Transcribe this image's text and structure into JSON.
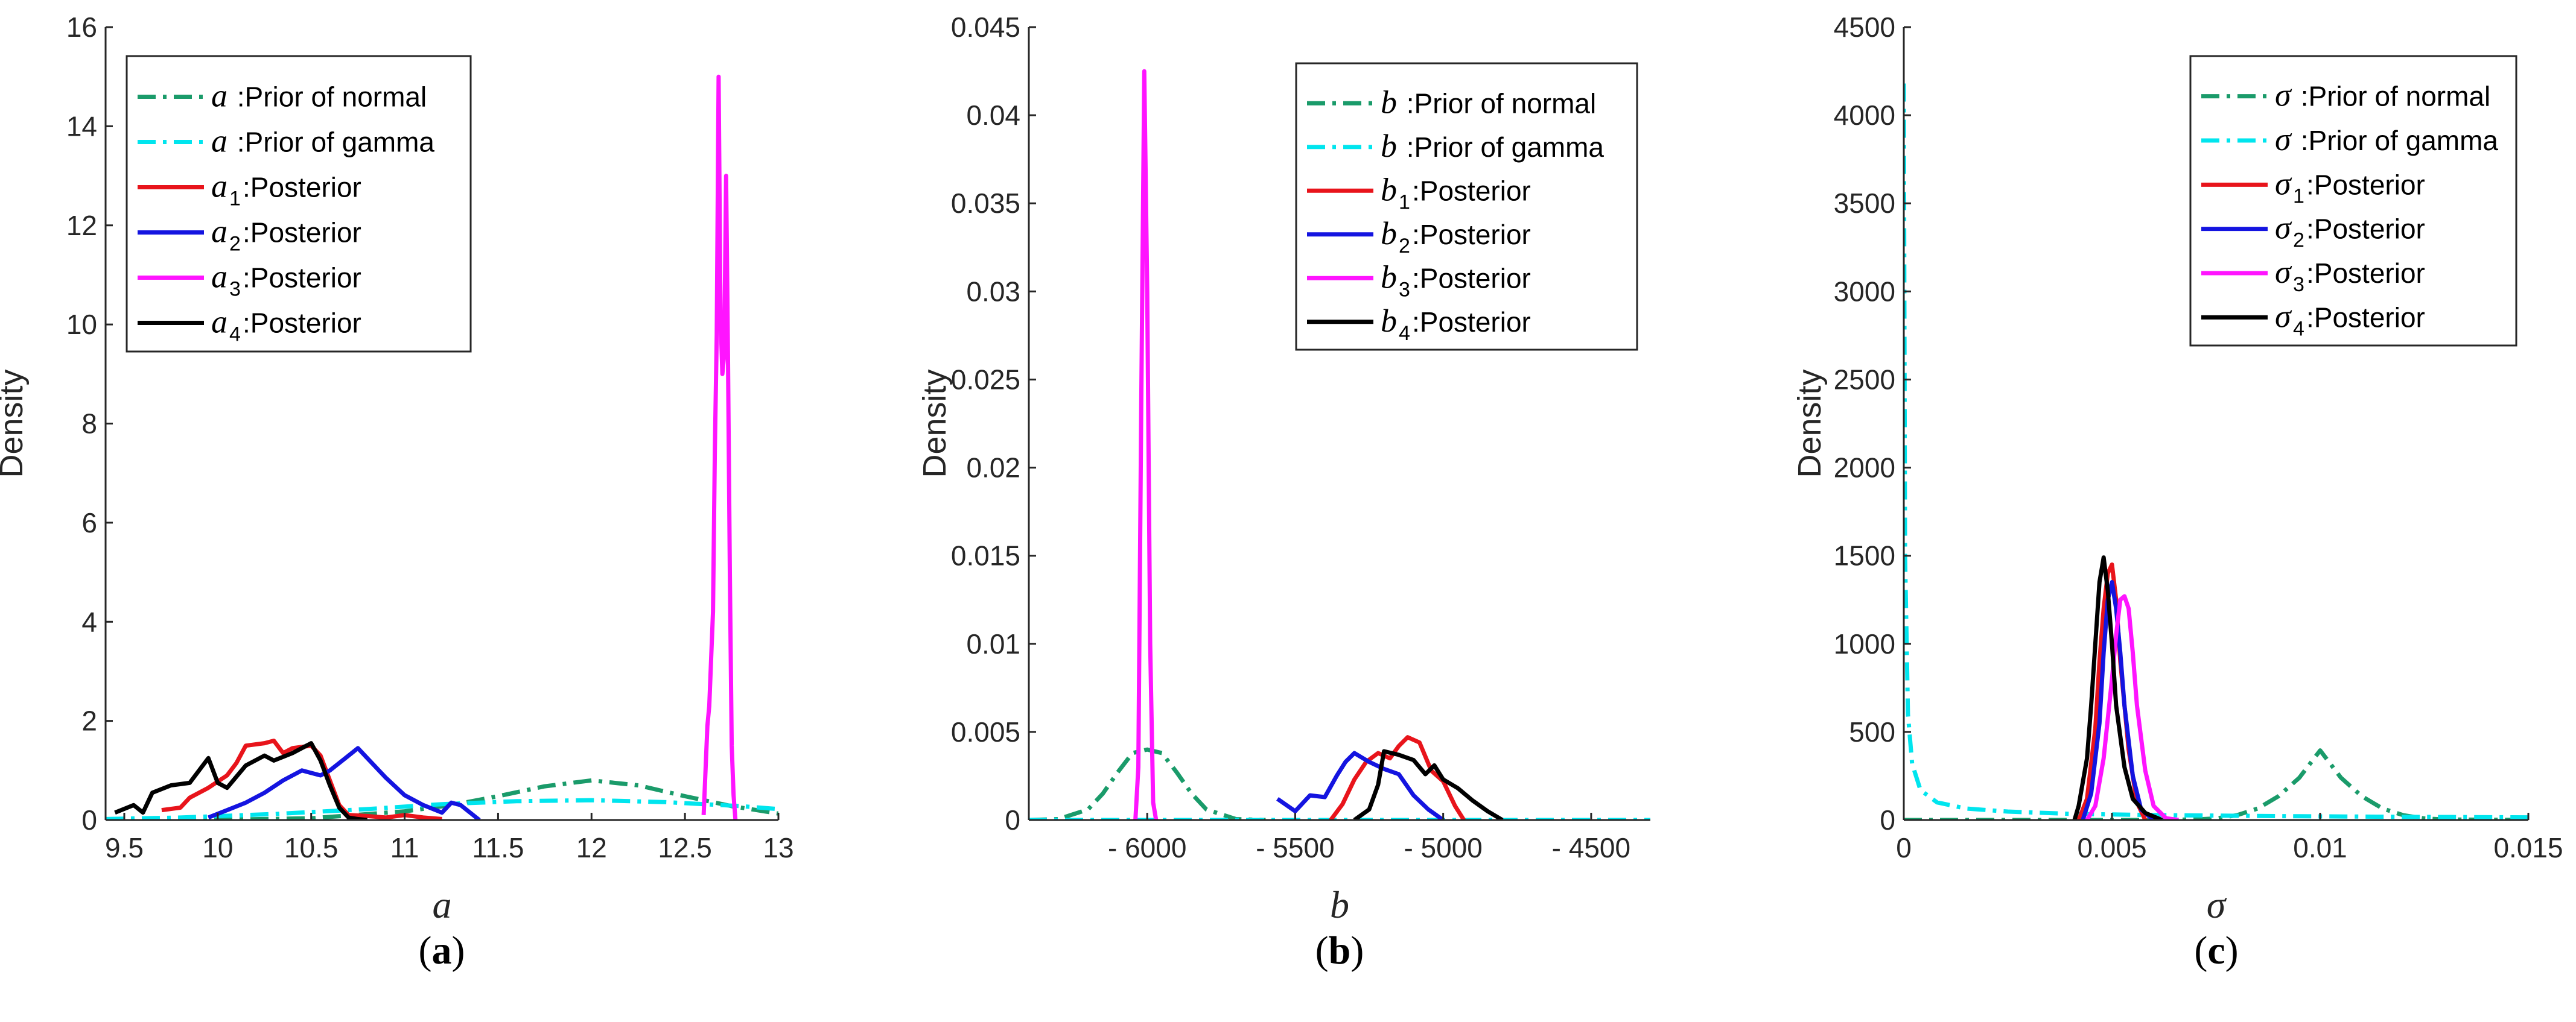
{
  "chart_data": [
    {
      "panel": "a",
      "type": "line",
      "caption": "(a)",
      "caption_letter": "a",
      "xlabel": "a",
      "ylabel": "Density",
      "xlim": [
        9.4,
        13
      ],
      "ylim": [
        0,
        16
      ],
      "xticks": [
        9.5,
        10,
        10.5,
        11,
        11.5,
        12,
        12.5,
        13
      ],
      "xtick_labels": [
        "9.5",
        "10",
        "10.5",
        "11",
        "11.5",
        "12",
        "12.5",
        "13"
      ],
      "yticks": [
        0,
        2,
        4,
        6,
        8,
        10,
        12,
        14,
        16
      ],
      "ytick_labels": [
        "0",
        "2",
        "4",
        "6",
        "8",
        "10",
        "12",
        "14",
        "16"
      ],
      "legend_position": "top-left",
      "series": [
        {
          "name": "a :Prior of normal",
          "symbol": "a",
          "sub": "",
          "label": " :Prior of normal",
          "color": "#1a9b6a",
          "style": "dashdot",
          "x": [
            9.4,
            10.0,
            10.5,
            11.0,
            11.25,
            11.5,
            11.75,
            12.0,
            12.25,
            12.5,
            12.75,
            13.0
          ],
          "y": [
            0.0,
            0.004,
            0.035,
            0.175,
            0.3,
            0.48,
            0.68,
            0.8,
            0.7,
            0.48,
            0.28,
            0.13
          ]
        },
        {
          "name": "a :Prior of gamma",
          "symbol": "a",
          "sub": "",
          "label": " :Prior of gamma",
          "color": "#00e5ee",
          "style": "dashdot",
          "x": [
            9.4,
            9.8,
            10.3,
            10.8,
            11.2,
            11.6,
            12.0,
            12.4,
            12.8,
            13.0
          ],
          "y": [
            0.02,
            0.05,
            0.12,
            0.22,
            0.32,
            0.38,
            0.4,
            0.36,
            0.28,
            0.22
          ]
        },
        {
          "name": "a1:Posterior",
          "symbol": "a",
          "sub": "1",
          "label": ":Posterior",
          "color": "#e8141b",
          "style": "solid",
          "x": [
            9.7,
            9.8,
            9.85,
            9.95,
            10.05,
            10.1,
            10.15,
            10.25,
            10.3,
            10.35,
            10.4,
            10.5,
            10.55,
            10.6,
            10.65,
            10.7,
            10.8,
            10.9,
            11.0,
            11.1,
            11.2
          ],
          "y": [
            0.2,
            0.25,
            0.45,
            0.65,
            0.9,
            1.15,
            1.5,
            1.55,
            1.6,
            1.35,
            1.45,
            1.5,
            1.3,
            0.8,
            0.3,
            0.1,
            0.08,
            0.05,
            0.1,
            0.05,
            0.02
          ]
        },
        {
          "name": "a2:Posterior",
          "symbol": "a",
          "sub": "2",
          "label": ":Posterior",
          "color": "#1414e0",
          "style": "solid",
          "x": [
            9.95,
            10.05,
            10.15,
            10.25,
            10.35,
            10.45,
            10.55,
            10.6,
            10.7,
            10.75,
            10.8,
            10.9,
            11.0,
            11.1,
            11.2,
            11.25,
            11.3,
            11.35,
            11.4
          ],
          "y": [
            0.05,
            0.2,
            0.35,
            0.55,
            0.8,
            1.0,
            0.9,
            1.0,
            1.3,
            1.45,
            1.25,
            0.85,
            0.5,
            0.3,
            0.15,
            0.35,
            0.3,
            0.15,
            0.0
          ]
        },
        {
          "name": "a3:Posterior",
          "symbol": "a",
          "sub": "3",
          "label": ":Posterior",
          "color": "#ff14ff",
          "style": "solid",
          "x": [
            12.6,
            12.62,
            12.63,
            12.65,
            12.66,
            12.67,
            12.68,
            12.69,
            12.7,
            12.71,
            12.72,
            12.73,
            12.74,
            12.75,
            12.76,
            12.77
          ],
          "y": [
            0.1,
            1.9,
            2.3,
            4.2,
            7.5,
            9.8,
            15.0,
            10.2,
            9.0,
            9.4,
            13.0,
            9.4,
            5.0,
            1.5,
            0.5,
            0.0
          ]
        },
        {
          "name": "a4:Posterior",
          "symbol": "a",
          "sub": "4",
          "label": ":Posterior",
          "color": "#000000",
          "style": "solid",
          "x": [
            9.45,
            9.55,
            9.6,
            9.65,
            9.75,
            9.85,
            9.95,
            10.0,
            10.05,
            10.15,
            10.25,
            10.3,
            10.4,
            10.5,
            10.55,
            10.6,
            10.65,
            10.7,
            10.75,
            10.8
          ],
          "y": [
            0.15,
            0.3,
            0.15,
            0.55,
            0.7,
            0.75,
            1.25,
            0.75,
            0.65,
            1.1,
            1.3,
            1.2,
            1.35,
            1.55,
            1.2,
            0.7,
            0.25,
            0.05,
            0.02,
            0.0
          ]
        }
      ]
    },
    {
      "panel": "b",
      "type": "line",
      "caption": "(b)",
      "caption_letter": "b",
      "xlabel": "b",
      "ylabel": "Density",
      "xlim": [
        -6400,
        -4300
      ],
      "ylim": [
        0,
        0.045
      ],
      "xticks": [
        -6000,
        -5500,
        -5000,
        -4500
      ],
      "xtick_labels": [
        "- 6000",
        "- 5500",
        "- 5000",
        "- 4500"
      ],
      "yticks": [
        0,
        0.005,
        0.01,
        0.015,
        0.02,
        0.025,
        0.03,
        0.035,
        0.04,
        0.045
      ],
      "ytick_labels": [
        "0",
        "0.005",
        "0.01",
        "0.015",
        "0.02",
        "0.025",
        "0.03",
        "0.035",
        "0.04",
        "0.045"
      ],
      "legend_position": "top-right",
      "series": [
        {
          "name": "b :Prior of normal",
          "symbol": "b",
          "sub": "",
          "label": " :Prior of normal",
          "color": "#1a9b6a",
          "style": "dashdot",
          "x": [
            -6400,
            -6300,
            -6200,
            -6150,
            -6100,
            -6050,
            -6000,
            -5950,
            -5900,
            -5850,
            -5800,
            -5700,
            -5600
          ],
          "y": [
            0.0,
            5e-05,
            0.0006,
            0.0015,
            0.0027,
            0.0038,
            0.004,
            0.0038,
            0.0027,
            0.0015,
            0.0006,
            5e-05,
            0.0
          ]
        },
        {
          "name": "b :Prior of gamma",
          "symbol": "b",
          "sub": "",
          "label": " :Prior of gamma",
          "color": "#00e5ee",
          "style": "dashdot",
          "x": [
            -6400,
            -5500,
            -4300
          ],
          "y": [
            0.0,
            0.0,
            0.0
          ]
        },
        {
          "name": "b1:Posterior",
          "symbol": "b",
          "sub": "1",
          "label": ":Posterior",
          "color": "#e8141b",
          "style": "solid",
          "x": [
            -5380,
            -5340,
            -5300,
            -5260,
            -5220,
            -5180,
            -5150,
            -5120,
            -5080,
            -5040,
            -5000,
            -4960,
            -4930
          ],
          "y": [
            0.0,
            0.0009,
            0.0023,
            0.0033,
            0.0038,
            0.0035,
            0.0042,
            0.0047,
            0.0044,
            0.0028,
            0.0022,
            0.0008,
            0.0
          ]
        },
        {
          "name": "b2:Posterior",
          "symbol": "b",
          "sub": "2",
          "label": ":Posterior",
          "color": "#1414e0",
          "style": "solid",
          "x": [
            -5560,
            -5500,
            -5450,
            -5400,
            -5360,
            -5330,
            -5300,
            -5250,
            -5200,
            -5150,
            -5100,
            -5050,
            -5000
          ],
          "y": [
            0.0012,
            0.0005,
            0.0014,
            0.0013,
            0.0025,
            0.0033,
            0.0038,
            0.0033,
            0.0029,
            0.0026,
            0.0014,
            0.0006,
            0.0
          ]
        },
        {
          "name": "b3:Posterior",
          "symbol": "b",
          "sub": "3",
          "label": ":Posterior",
          "color": "#ff14ff",
          "style": "solid",
          "x": [
            -6040,
            -6030,
            -6020,
            -6010,
            -6000,
            -5990,
            -5980,
            -5970
          ],
          "y": [
            0.0,
            0.003,
            0.024,
            0.0425,
            0.03,
            0.01,
            0.001,
            0.0
          ]
        },
        {
          "name": "b4:Posterior",
          "symbol": "b",
          "sub": "4",
          "label": ":Posterior",
          "color": "#000000",
          "style": "solid",
          "x": [
            -5300,
            -5250,
            -5220,
            -5200,
            -5150,
            -5100,
            -5060,
            -5030,
            -5000,
            -4950,
            -4900,
            -4850,
            -4800
          ],
          "y": [
            0.0,
            0.0006,
            0.002,
            0.0039,
            0.0037,
            0.0034,
            0.0026,
            0.0031,
            0.0023,
            0.0018,
            0.0011,
            0.0005,
            0.0
          ]
        }
      ]
    },
    {
      "panel": "c",
      "type": "line",
      "caption": "(c)",
      "caption_letter": "c",
      "xlabel": "σ",
      "ylabel": "Density",
      "xlim": [
        0,
        0.015
      ],
      "ylim": [
        0,
        4500
      ],
      "xticks": [
        0,
        0.005,
        0.01,
        0.015
      ],
      "xtick_labels": [
        "0",
        "0.005",
        "0.01",
        "0.015"
      ],
      "yticks": [
        0,
        500,
        1000,
        1500,
        2000,
        2500,
        3000,
        3500,
        4000,
        4500
      ],
      "ytick_labels": [
        "0",
        "500",
        "1000",
        "1500",
        "2000",
        "2500",
        "3000",
        "3500",
        "4000",
        "4500"
      ],
      "legend_position": "top-right",
      "series": [
        {
          "name": "σ :Prior of normal",
          "symbol": "σ",
          "sub": "",
          "label": " :Prior of normal",
          "color": "#1a9b6a",
          "style": "dashdot",
          "x": [
            0,
            0.006,
            0.007,
            0.0075,
            0.008,
            0.0085,
            0.009,
            0.0095,
            0.01,
            0.0105,
            0.011,
            0.0115,
            0.012,
            0.0125,
            0.013,
            0.015
          ],
          "y": [
            0,
            0,
            3,
            9,
            27,
            65,
            135,
            240,
            395,
            240,
            135,
            65,
            27,
            9,
            3,
            0
          ]
        },
        {
          "name": "σ :Prior of gamma",
          "symbol": "σ",
          "sub": "",
          "label": " :Prior of gamma",
          "color": "#00e5ee",
          "style": "dashdot",
          "x": [
            0.0,
            3e-05,
            0.0001,
            0.0002,
            0.0004,
            0.0008,
            0.0015,
            0.0025,
            0.004,
            0.006,
            0.009,
            0.012,
            0.015
          ],
          "y": [
            4180,
            1500,
            600,
            320,
            170,
            100,
            65,
            48,
            35,
            28,
            22,
            18,
            15
          ]
        },
        {
          "name": "σ1:Posterior",
          "symbol": "σ",
          "sub": "1",
          "label": ":Posterior",
          "color": "#e8141b",
          "style": "solid",
          "x": [
            0.0042,
            0.0044,
            0.0046,
            0.0047,
            0.0048,
            0.0049,
            0.005,
            0.0051,
            0.0052,
            0.0054,
            0.0056,
            0.0058
          ],
          "y": [
            0,
            120,
            520,
            900,
            1200,
            1400,
            1450,
            1250,
            900,
            400,
            100,
            0
          ]
        },
        {
          "name": "σ2:Posterior",
          "symbol": "σ",
          "sub": "2",
          "label": ":Posterior",
          "color": "#1414e0",
          "style": "solid",
          "x": [
            0.0043,
            0.0045,
            0.0047,
            0.0048,
            0.0049,
            0.005,
            0.0051,
            0.0052,
            0.0053,
            0.0055,
            0.0057,
            0.006
          ],
          "y": [
            0,
            150,
            550,
            950,
            1250,
            1350,
            1200,
            950,
            650,
            250,
            60,
            0
          ]
        },
        {
          "name": "σ3:Posterior",
          "symbol": "σ",
          "sub": "3",
          "label": ":Posterior",
          "color": "#ff14ff",
          "style": "solid",
          "x": [
            0.0044,
            0.0046,
            0.0048,
            0.005,
            0.0051,
            0.0052,
            0.0053,
            0.0054,
            0.0055,
            0.0056,
            0.0058,
            0.006,
            0.0063,
            0.0066
          ],
          "y": [
            0,
            80,
            350,
            800,
            1050,
            1250,
            1270,
            1200,
            950,
            650,
            280,
            80,
            10,
            0
          ]
        },
        {
          "name": "σ4:Posterior",
          "symbol": "σ",
          "sub": "4",
          "label": ":Posterior",
          "color": "#000000",
          "style": "solid",
          "x": [
            0.0041,
            0.0042,
            0.0044,
            0.0045,
            0.0046,
            0.0047,
            0.0048,
            0.0049,
            0.005,
            0.0051,
            0.0053,
            0.0055,
            0.0058,
            0.0062
          ],
          "y": [
            0,
            80,
            350,
            650,
            1000,
            1350,
            1490,
            1300,
            1000,
            650,
            300,
            120,
            40,
            0
          ]
        }
      ]
    }
  ]
}
